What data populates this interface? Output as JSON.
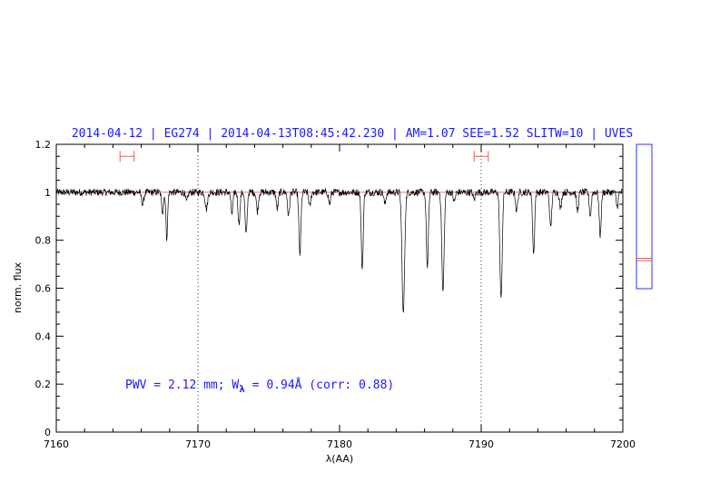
{
  "chart_data": {
    "type": "line",
    "title": "2014-04-12 | EG274 | 2014-04-13T08:45:42.230 | AM=1.07 SEE=1.52 SLITW=10 | UVES",
    "xlabel": "λ(AA)",
    "ylabel": "norm. flux",
    "xlim": [
      7160,
      7200
    ],
    "ylim": [
      0,
      1.2
    ],
    "x_ticks": [
      "7160",
      "7170",
      "7180",
      "7190",
      "7200"
    ],
    "y_ticks": [
      "0",
      "0.2",
      "0.4",
      "0.6",
      "0.8",
      "1",
      "1.2"
    ],
    "annotation": {
      "prefix": "PWV = 2.12 mm; W",
      "subscript": "λ",
      "suffix": " = 0.94Å (corr: 0.88)"
    },
    "continuum_level": 1.0,
    "reference_lines_x": [
      7170,
      7190
    ],
    "continuum_windows": [
      {
        "x": [
          7164.5,
          7165.5
        ],
        "y": 1.15
      },
      {
        "x": [
          7189.5,
          7190.5
        ],
        "y": 1.15
      }
    ],
    "side_panel": {
      "marker_values": [
        0.715,
        0.725
      ]
    },
    "series": [
      {
        "continuum": 1.0,
        "absorption_lines": [
          {
            "center": 7166.1,
            "depth": 0.05,
            "width": 0.08
          },
          {
            "center": 7167.5,
            "depth": 0.08,
            "width": 0.07
          },
          {
            "center": 7167.8,
            "depth": 0.19,
            "width": 0.06
          },
          {
            "center": 7169.2,
            "depth": 0.04,
            "width": 0.08
          },
          {
            "center": 7170.6,
            "depth": 0.07,
            "width": 0.08
          },
          {
            "center": 7172.4,
            "depth": 0.09,
            "width": 0.07
          },
          {
            "center": 7172.9,
            "depth": 0.13,
            "width": 0.07
          },
          {
            "center": 7173.4,
            "depth": 0.18,
            "width": 0.07
          },
          {
            "center": 7174.2,
            "depth": 0.08,
            "width": 0.07
          },
          {
            "center": 7175.6,
            "depth": 0.07,
            "width": 0.07
          },
          {
            "center": 7176.4,
            "depth": 0.1,
            "width": 0.07
          },
          {
            "center": 7177.2,
            "depth": 0.26,
            "width": 0.07
          },
          {
            "center": 7177.9,
            "depth": 0.06,
            "width": 0.07
          },
          {
            "center": 7179.3,
            "depth": 0.05,
            "width": 0.07
          },
          {
            "center": 7181.6,
            "depth": 0.32,
            "width": 0.07
          },
          {
            "center": 7183.2,
            "depth": 0.05,
            "width": 0.07
          },
          {
            "center": 7184.5,
            "depth": 0.51,
            "width": 0.09
          },
          {
            "center": 7186.2,
            "depth": 0.32,
            "width": 0.07
          },
          {
            "center": 7187.3,
            "depth": 0.42,
            "width": 0.08
          },
          {
            "center": 7188.1,
            "depth": 0.04,
            "width": 0.07
          },
          {
            "center": 7189.5,
            "depth": 0.03,
            "width": 0.07
          },
          {
            "center": 7191.4,
            "depth": 0.45,
            "width": 0.08
          },
          {
            "center": 7192.5,
            "depth": 0.08,
            "width": 0.07
          },
          {
            "center": 7193.7,
            "depth": 0.26,
            "width": 0.07
          },
          {
            "center": 7194.9,
            "depth": 0.15,
            "width": 0.07
          },
          {
            "center": 7195.6,
            "depth": 0.07,
            "width": 0.07
          },
          {
            "center": 7196.8,
            "depth": 0.08,
            "width": 0.07
          },
          {
            "center": 7197.7,
            "depth": 0.1,
            "width": 0.07
          },
          {
            "center": 7198.4,
            "depth": 0.18,
            "width": 0.07
          },
          {
            "center": 7199.6,
            "depth": 0.06,
            "width": 0.07
          }
        ]
      }
    ]
  },
  "colors": {
    "title": "#1a1aff",
    "annotation": "#1a1aff",
    "spectrum": "#000000",
    "continuum_line": "#e06060",
    "window_marker": "#e06060",
    "side_panel_border": "#3030ff",
    "axis": "#000000"
  }
}
